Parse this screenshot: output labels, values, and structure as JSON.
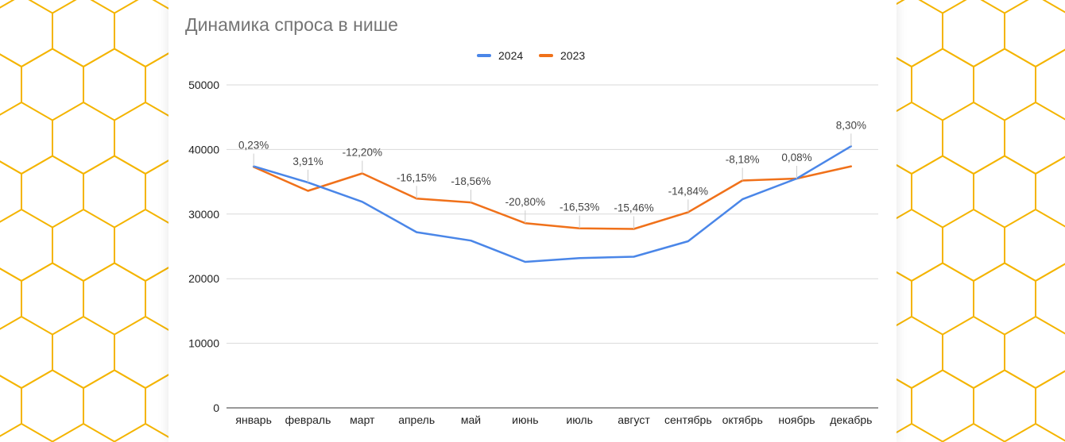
{
  "page": {
    "title": "Динамика спроса в нише"
  },
  "colors": {
    "series_2024": "#4a86e8",
    "series_2023": "#f0711a",
    "honeycomb": "#f4b400",
    "grid": "#d9d9d9"
  },
  "chart_data": {
    "type": "line",
    "title": "Динамика спроса в нише",
    "xlabel": "",
    "ylabel": "",
    "legend_position": "top-center",
    "grid": true,
    "ylim": [
      0,
      50000
    ],
    "yticks": [
      "0",
      "10000",
      "20000",
      "30000",
      "40000",
      "50000"
    ],
    "categories": [
      "январь",
      "февраль",
      "март",
      "апрель",
      "май",
      "июнь",
      "июль",
      "август",
      "сентябрь",
      "октябрь",
      "ноябрь",
      "декабрь"
    ],
    "series": [
      {
        "name": "2024",
        "values": [
          37400,
          34900,
          31900,
          27200,
          25900,
          22600,
          23200,
          23400,
          25800,
          32300,
          35500,
          40500
        ]
      },
      {
        "name": "2023",
        "values": [
          37300,
          33600,
          36300,
          32400,
          31800,
          28600,
          27800,
          27700,
          30300,
          35200,
          35500,
          37400
        ]
      }
    ],
    "annotations": [
      "0,23%",
      "3,91%",
      "-12,20%",
      "-16,15%",
      "-18,56%",
      "-20,80%",
      "-16,53%",
      "-15,46%",
      "-14,84%",
      "-8,18%",
      "0,08%",
      "8,30%"
    ]
  }
}
